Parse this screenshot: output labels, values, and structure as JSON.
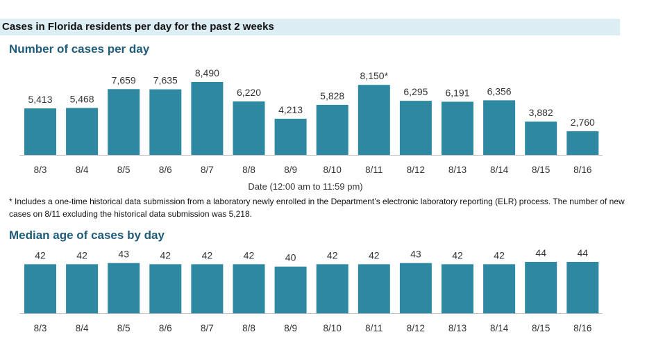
{
  "banner_title": "Cases in Florida residents per day for the past 2 weeks",
  "chart_data": [
    {
      "type": "bar",
      "title": "Number of cases per day",
      "xlabel": "Date (12:00 am to 11:59 pm)",
      "ylabel": "",
      "categories": [
        "8/3",
        "8/4",
        "8/5",
        "8/6",
        "8/7",
        "8/8",
        "8/9",
        "8/10",
        "8/11",
        "8/12",
        "8/13",
        "8/14",
        "8/15",
        "8/16"
      ],
      "values": [
        5413,
        5468,
        7659,
        7635,
        8490,
        6220,
        4213,
        5828,
        8150,
        6295,
        6191,
        6356,
        3882,
        2760
      ],
      "data_labels": [
        "5,413",
        "5,468",
        "7,659",
        "7,635",
        "8,490",
        "6,220",
        "4,213",
        "5,828",
        "8,150*",
        "6,295",
        "6,191",
        "6,356",
        "3,882",
        "2,760"
      ],
      "ylim": [
        0,
        8490
      ],
      "color": "#2e88a1",
      "grid": false
    },
    {
      "type": "bar",
      "title": "Median age of cases by day",
      "xlabel": "",
      "ylabel": "",
      "categories": [
        "8/3",
        "8/4",
        "8/5",
        "8/6",
        "8/7",
        "8/8",
        "8/9",
        "8/10",
        "8/11",
        "8/12",
        "8/13",
        "8/14",
        "8/15",
        "8/16"
      ],
      "values": [
        42,
        42,
        43,
        42,
        42,
        42,
        40,
        42,
        42,
        43,
        42,
        42,
        44,
        44
      ],
      "data_labels": [
        "42",
        "42",
        "43",
        "42",
        "42",
        "42",
        "40",
        "42",
        "42",
        "43",
        "42",
        "42",
        "44",
        "44"
      ],
      "ylim": [
        0,
        44
      ],
      "color": "#2e88a1",
      "grid": false
    }
  ],
  "footnote": "* Includes a one-time historical data submission from a laboratory newly enrolled in the Department’s electronic laboratory reporting (ELR) process. The number of new cases on 8/11 excluding the historical data submission was 5,218."
}
